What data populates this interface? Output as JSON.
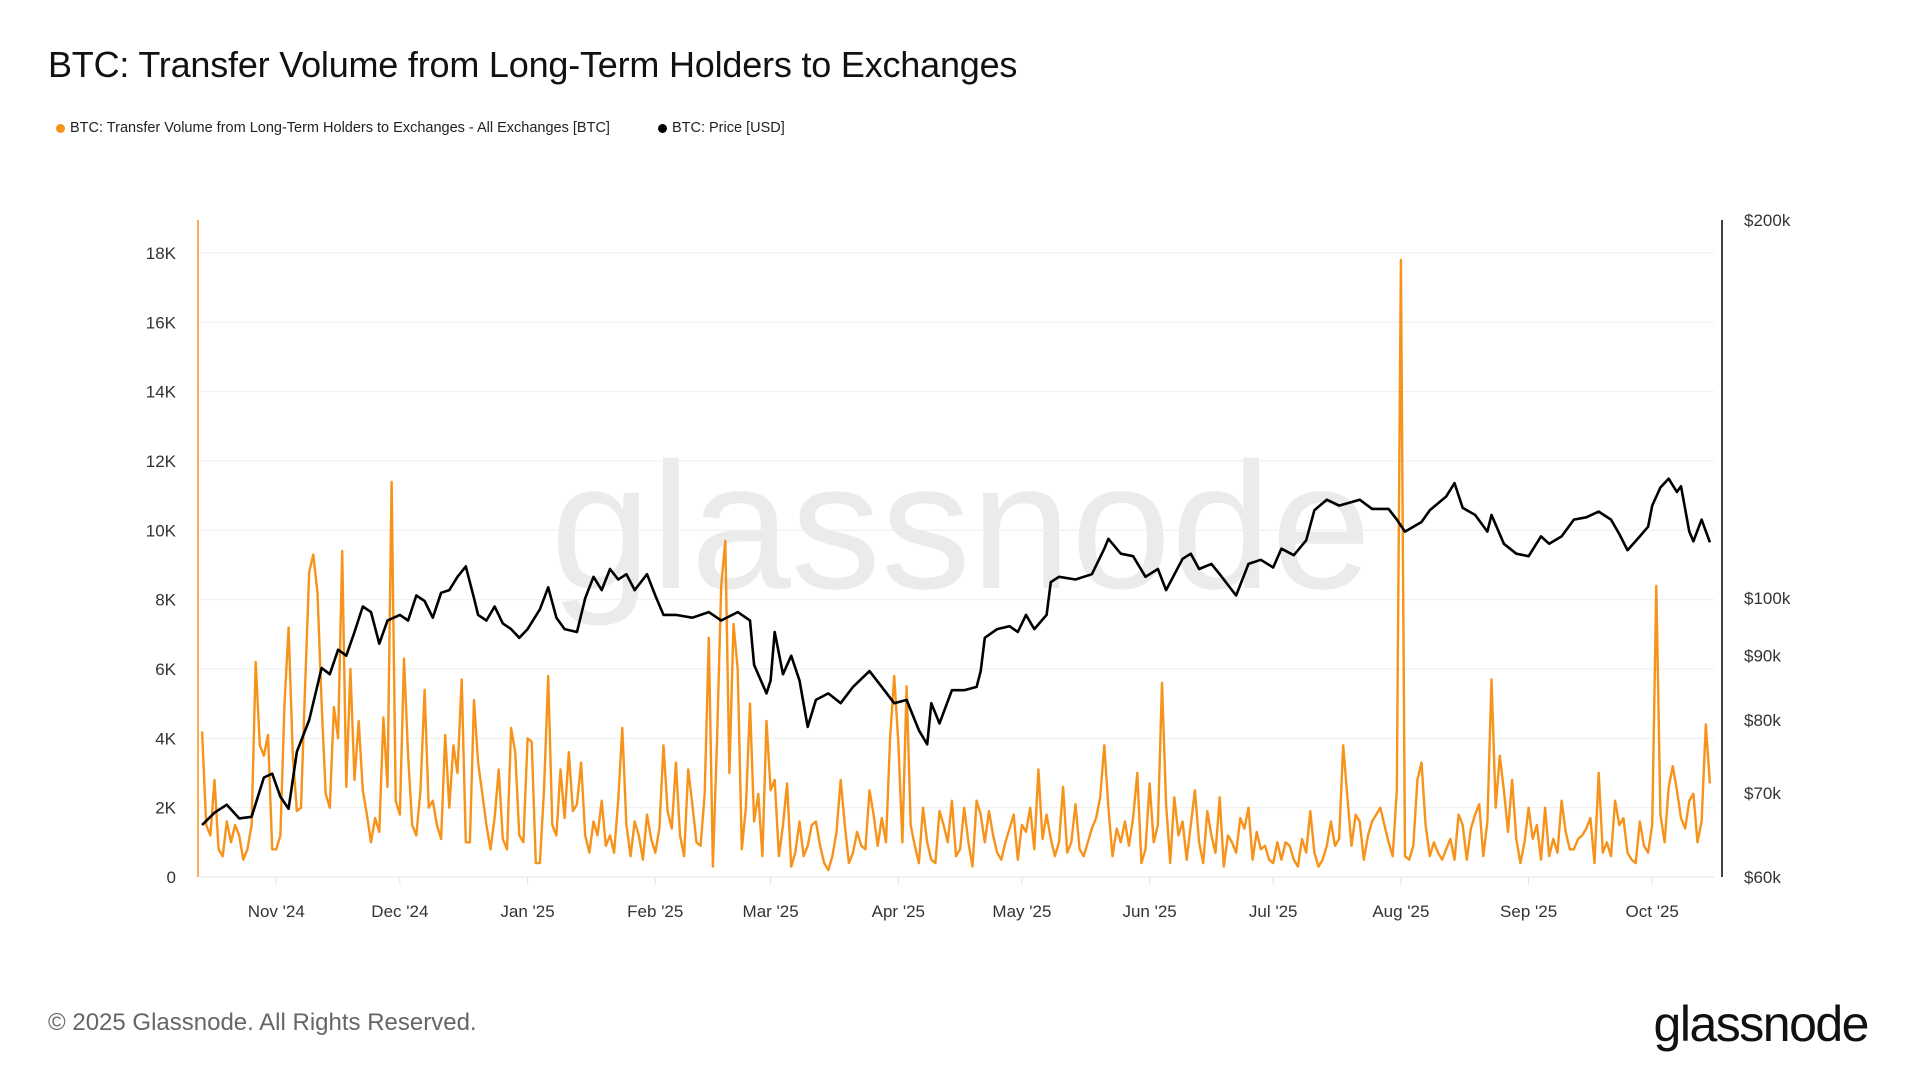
{
  "chart_data": {
    "type": "line",
    "title": "BTC: Transfer Volume from Long-Term Holders to Exchanges",
    "legend_placement": "top-left",
    "grid": true,
    "watermark": "glassnode",
    "x_ticks": [
      "Nov '24",
      "Dec '24",
      "Jan '25",
      "Feb '25",
      "Mar '25",
      "Apr '25",
      "May '25",
      "Jun '25",
      "Jul '25",
      "Aug '25",
      "Sep '25",
      "Oct '25"
    ],
    "x_tick_dates": [
      "2024-11-01",
      "2024-12-01",
      "2025-01-01",
      "2025-02-01",
      "2025-03-01",
      "2025-04-01",
      "2025-05-01",
      "2025-06-01",
      "2025-07-01",
      "2025-08-01",
      "2025-09-01",
      "2025-10-01"
    ],
    "xlim": [
      "2024-10-13",
      "2025-10-16"
    ],
    "y_left": {
      "ticks": [
        "0",
        "2K",
        "4K",
        "6K",
        "8K",
        "10K",
        "12K",
        "14K",
        "16K",
        "18K"
      ],
      "tick_values": [
        0,
        2000,
        4000,
        6000,
        8000,
        10000,
        12000,
        14000,
        16000,
        18000
      ],
      "range": [
        0,
        18950
      ],
      "scale": "linear"
    },
    "y_right": {
      "ticks": [
        "$60k",
        "$70k",
        "$80k",
        "$90k",
        "$100k",
        "$200k"
      ],
      "tick_values": [
        60000,
        70000,
        80000,
        90000,
        100000,
        200000
      ],
      "range": [
        60000,
        200000
      ],
      "scale": "log"
    },
    "series": [
      {
        "name": "BTC: Transfer Volume from Long-Term Holders to Exchanges - All Exchanges [BTC]",
        "color": "#F7931A",
        "axis": "left",
        "daily_values_by_start_date": {
          "2024-10-14": [
            4200,
            1500,
            1200,
            2800,
            800,
            600,
            1600,
            1000,
            1500,
            1200,
            500,
            800,
            1500,
            6200,
            3800,
            3500,
            4100,
            800
          ],
          "2024-11-01": [
            800,
            1200,
            5000,
            7200,
            3500,
            1900,
            2000,
            5500,
            8800,
            9300,
            8200,
            5000,
            2400,
            2000,
            4900,
            4000,
            9400,
            2600,
            6000,
            2800,
            4500,
            2500,
            1800,
            1000,
            1700,
            1300,
            4600,
            2600,
            11400,
            2200
          ],
          "2024-12-01": [
            1800,
            6300,
            3500,
            1500,
            1200,
            2500,
            5400,
            2000,
            2200,
            1500,
            1100,
            4100,
            2000,
            3800,
            3000,
            5700,
            1000,
            1000,
            5100,
            3300,
            2400,
            1500,
            800,
            1700,
            3100,
            1100,
            800,
            4300,
            3600,
            1200,
            1000
          ],
          "2025-01-01": [
            4000,
            3900,
            400,
            400,
            2500,
            5800,
            1500,
            1200,
            3100,
            1700,
            3600,
            1900,
            2100,
            3300,
            1200,
            700,
            1600,
            1200,
            2200,
            900,
            1200,
            700,
            2200,
            4300,
            1500,
            600,
            1600,
            1200,
            500,
            1800,
            1100
          ],
          "2025-02-01": [
            700,
            1400,
            3800,
            1900,
            1400,
            3300,
            1200,
            600,
            3100,
            2100,
            1000,
            900,
            2400,
            6900,
            300,
            4000,
            8400,
            9700,
            3000,
            7300,
            6000,
            800,
            2000,
            5000,
            1600,
            2400,
            600,
            4500
          ],
          "2025-03-01": [
            2500,
            2800,
            600,
            1500,
            2700,
            300,
            700,
            1600,
            600,
            900,
            1500,
            1600,
            900,
            400,
            200,
            600,
            1300,
            2800,
            1500,
            400,
            700,
            1300,
            900,
            800,
            2500,
            1800,
            900,
            1700,
            1000,
            4000,
            5800
          ],
          "2025-04-01": [
            3900,
            1000,
            5500,
            1500,
            900,
            400,
            2000,
            1000,
            500,
            400,
            1900,
            1500,
            1000,
            2200,
            600,
            800,
            2000,
            1000,
            300,
            2200,
            1800,
            1000,
            1900,
            1200,
            700,
            500,
            1000,
            1400,
            1800,
            500
          ],
          "2025-05-01": [
            1500,
            1300,
            2000,
            800,
            3100,
            1100,
            1800,
            1100,
            600,
            1000,
            2600,
            700,
            1000,
            2100,
            800,
            600,
            1000,
            1400,
            1700,
            2300,
            3800,
            2000,
            600,
            1400,
            1000,
            1600,
            900,
            1700,
            3000,
            400,
            800
          ],
          "2025-06-01": [
            2700,
            1000,
            1500,
            5600,
            2100,
            400,
            2300,
            1200,
            1600,
            500,
            1500,
            2500,
            1000,
            400,
            1900,
            1200,
            700,
            2300,
            300,
            1200,
            1000,
            700,
            1700,
            1400,
            2000,
            500,
            1300,
            800,
            900,
            500
          ],
          "2025-07-01": [
            400,
            1000,
            500,
            1000,
            900,
            500,
            300,
            1100,
            700,
            1900,
            700,
            300,
            500,
            900,
            1600,
            900,
            1100,
            3800,
            2300,
            900,
            1800,
            1600,
            500,
            1200,
            1600,
            1800,
            2000,
            1500,
            1000,
            600,
            2500
          ],
          "2025-08-01": [
            17800,
            600,
            500,
            900,
            2800,
            3300,
            1500,
            600,
            1000,
            700,
            500,
            800,
            1100,
            500,
            1800,
            1500,
            500,
            1400,
            1800,
            2100,
            600,
            1600,
            5700,
            2000,
            3500,
            2500,
            1300,
            2800,
            1100,
            400,
            1000
          ],
          "2025-09-01": [
            2000,
            1100,
            1500,
            500,
            2000,
            600,
            1100,
            700,
            2200,
            1300,
            800,
            800,
            1100,
            1200,
            1400,
            1700,
            400,
            3000,
            700,
            1000,
            600,
            2200,
            1500,
            1700,
            700,
            500,
            400,
            1600,
            900,
            700
          ],
          "2025-10-01": [
            1500,
            8400,
            1800,
            1000,
            2600,
            3200,
            2500,
            1700,
            1400,
            2200,
            2400,
            1000,
            1600,
            4400,
            2700
          ]
        }
      },
      {
        "name": "BTC: Price [USD]",
        "color": "#000000",
        "axis": "right",
        "points": [
          [
            "2024-10-14",
            66000
          ],
          [
            "2024-10-17",
            67500
          ],
          [
            "2024-10-20",
            68500
          ],
          [
            "2024-10-23",
            66800
          ],
          [
            "2024-10-26",
            67000
          ],
          [
            "2024-10-29",
            72000
          ],
          [
            "2024-10-31",
            72500
          ],
          [
            "2024-11-02",
            69500
          ],
          [
            "2024-11-04",
            68000
          ],
          [
            "2024-11-06",
            75500
          ],
          [
            "2024-11-09",
            80000
          ],
          [
            "2024-11-12",
            88000
          ],
          [
            "2024-11-14",
            87000
          ],
          [
            "2024-11-16",
            91000
          ],
          [
            "2024-11-18",
            90000
          ],
          [
            "2024-11-20",
            94000
          ],
          [
            "2024-11-22",
            98500
          ],
          [
            "2024-11-24",
            97500
          ],
          [
            "2024-11-26",
            92000
          ],
          [
            "2024-11-28",
            96000
          ],
          [
            "2024-12-01",
            97000
          ],
          [
            "2024-12-03",
            96000
          ],
          [
            "2024-12-05",
            100500
          ],
          [
            "2024-12-07",
            99500
          ],
          [
            "2024-12-09",
            96500
          ],
          [
            "2024-12-11",
            101000
          ],
          [
            "2024-12-13",
            101500
          ],
          [
            "2024-12-15",
            104000
          ],
          [
            "2024-12-17",
            106000
          ],
          [
            "2024-12-19",
            100000
          ],
          [
            "2024-12-20",
            97000
          ],
          [
            "2024-12-22",
            96000
          ],
          [
            "2024-12-24",
            98500
          ],
          [
            "2024-12-26",
            95500
          ],
          [
            "2024-12-28",
            94500
          ],
          [
            "2024-12-30",
            93000
          ],
          [
            "2025-01-01",
            94500
          ],
          [
            "2025-01-04",
            98000
          ],
          [
            "2025-01-06",
            102000
          ],
          [
            "2025-01-08",
            96500
          ],
          [
            "2025-01-10",
            94500
          ],
          [
            "2025-01-13",
            94000
          ],
          [
            "2025-01-15",
            100000
          ],
          [
            "2025-01-17",
            104000
          ],
          [
            "2025-01-19",
            101500
          ],
          [
            "2025-01-21",
            105500
          ],
          [
            "2025-01-23",
            103500
          ],
          [
            "2025-01-25",
            104500
          ],
          [
            "2025-01-27",
            101500
          ],
          [
            "2025-01-30",
            104500
          ],
          [
            "2025-02-01",
            100500
          ],
          [
            "2025-02-03",
            97000
          ],
          [
            "2025-02-06",
            97000
          ],
          [
            "2025-02-10",
            96500
          ],
          [
            "2025-02-14",
            97500
          ],
          [
            "2025-02-17",
            96000
          ],
          [
            "2025-02-21",
            97500
          ],
          [
            "2025-02-24",
            96000
          ],
          [
            "2025-02-25",
            88500
          ],
          [
            "2025-02-28",
            84000
          ],
          [
            "2025-03-01",
            86000
          ],
          [
            "2025-03-02",
            94000
          ],
          [
            "2025-03-04",
            87000
          ],
          [
            "2025-03-06",
            90000
          ],
          [
            "2025-03-08",
            86000
          ],
          [
            "2025-03-10",
            79000
          ],
          [
            "2025-03-12",
            83000
          ],
          [
            "2025-03-15",
            84000
          ],
          [
            "2025-03-18",
            82500
          ],
          [
            "2025-03-21",
            85000
          ],
          [
            "2025-03-25",
            87500
          ],
          [
            "2025-03-28",
            85000
          ],
          [
            "2025-03-31",
            82500
          ],
          [
            "2025-04-03",
            83000
          ],
          [
            "2025-04-06",
            78500
          ],
          [
            "2025-04-08",
            76500
          ],
          [
            "2025-04-09",
            82500
          ],
          [
            "2025-04-11",
            79500
          ],
          [
            "2025-04-14",
            84500
          ],
          [
            "2025-04-17",
            84500
          ],
          [
            "2025-04-20",
            85000
          ],
          [
            "2025-04-21",
            87500
          ],
          [
            "2025-04-22",
            93000
          ],
          [
            "2025-04-25",
            94500
          ],
          [
            "2025-04-28",
            95000
          ],
          [
            "2025-04-30",
            94000
          ],
          [
            "2025-05-02",
            97000
          ],
          [
            "2025-05-04",
            94500
          ],
          [
            "2025-05-07",
            97000
          ],
          [
            "2025-05-08",
            103000
          ],
          [
            "2025-05-10",
            104000
          ],
          [
            "2025-05-14",
            103500
          ],
          [
            "2025-05-18",
            104500
          ],
          [
            "2025-05-21",
            109500
          ],
          [
            "2025-05-22",
            111500
          ],
          [
            "2025-05-25",
            108500
          ],
          [
            "2025-05-28",
            108000
          ],
          [
            "2025-05-31",
            104000
          ],
          [
            "2025-06-03",
            105500
          ],
          [
            "2025-06-05",
            101500
          ],
          [
            "2025-06-09",
            107500
          ],
          [
            "2025-06-11",
            108500
          ],
          [
            "2025-06-13",
            105500
          ],
          [
            "2025-06-16",
            106500
          ],
          [
            "2025-06-18",
            104500
          ],
          [
            "2025-06-22",
            100500
          ],
          [
            "2025-06-25",
            106500
          ],
          [
            "2025-06-28",
            107300
          ],
          [
            "2025-07-01",
            105800
          ],
          [
            "2025-07-03",
            109500
          ],
          [
            "2025-07-06",
            108200
          ],
          [
            "2025-07-09",
            111200
          ],
          [
            "2025-07-11",
            117500
          ],
          [
            "2025-07-14",
            119800
          ],
          [
            "2025-07-17",
            118500
          ],
          [
            "2025-07-22",
            119800
          ],
          [
            "2025-07-25",
            117800
          ],
          [
            "2025-07-29",
            117800
          ],
          [
            "2025-07-31",
            115500
          ],
          [
            "2025-08-02",
            113000
          ],
          [
            "2025-08-06",
            115000
          ],
          [
            "2025-08-08",
            117500
          ],
          [
            "2025-08-12",
            120500
          ],
          [
            "2025-08-14",
            123500
          ],
          [
            "2025-08-16",
            118000
          ],
          [
            "2025-08-19",
            116500
          ],
          [
            "2025-08-22",
            113000
          ],
          [
            "2025-08-23",
            116500
          ],
          [
            "2025-08-26",
            110500
          ],
          [
            "2025-08-29",
            108500
          ],
          [
            "2025-09-01",
            108000
          ],
          [
            "2025-09-04",
            112000
          ],
          [
            "2025-09-06",
            110500
          ],
          [
            "2025-09-09",
            112000
          ],
          [
            "2025-09-12",
            115500
          ],
          [
            "2025-09-15",
            116000
          ],
          [
            "2025-09-18",
            117200
          ],
          [
            "2025-09-21",
            115500
          ],
          [
            "2025-09-23",
            112500
          ],
          [
            "2025-09-25",
            109200
          ],
          [
            "2025-09-28",
            112000
          ],
          [
            "2025-09-30",
            114000
          ],
          [
            "2025-10-01",
            118500
          ],
          [
            "2025-10-03",
            122500
          ],
          [
            "2025-10-05",
            124500
          ],
          [
            "2025-10-07",
            121500
          ],
          [
            "2025-10-08",
            122800
          ],
          [
            "2025-10-10",
            113000
          ],
          [
            "2025-10-11",
            111000
          ],
          [
            "2025-10-13",
            115500
          ],
          [
            "2025-10-15",
            110800
          ]
        ]
      }
    ]
  },
  "footer": {
    "copyright": "© 2025 Glassnode. All Rights Reserved.",
    "logo": "glassnode"
  }
}
